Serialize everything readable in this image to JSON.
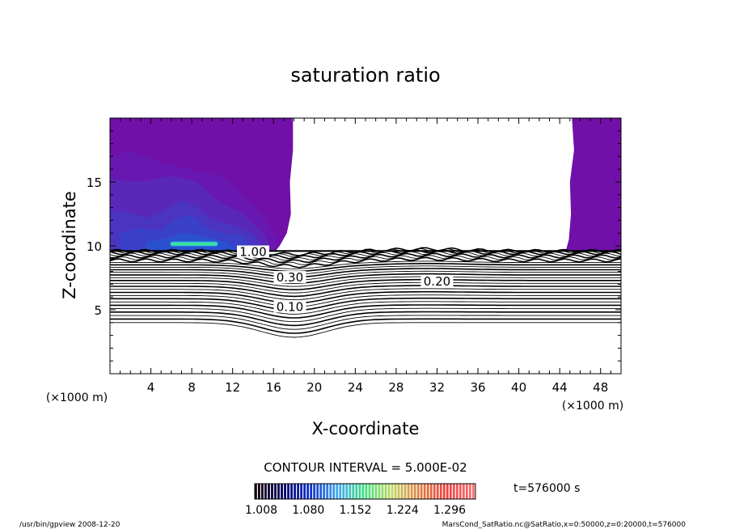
{
  "chart_data": {
    "type": "contour",
    "title": "saturation ratio",
    "xlabel": "X-coordinate",
    "ylabel": "Z-coordinate",
    "x_unit": "(×1000 m)",
    "y_unit": "(×1000 m)",
    "xlim": [
      0,
      50
    ],
    "ylim": [
      0,
      20
    ],
    "x_ticks": [
      4,
      8,
      12,
      16,
      20,
      24,
      28,
      32,
      36,
      40,
      44,
      48
    ],
    "y_ticks": [
      5,
      10,
      15
    ],
    "contour_interval_label": "CONTOUR INTERVAL = 5.000E-02",
    "time_label": "t=576000 s",
    "colorbar": {
      "ticks": [
        "1.008",
        "1.080",
        "1.152",
        "1.224",
        "1.296"
      ],
      "colors": [
        "#150008",
        "#000060",
        "#1030d0",
        "#40a8f0",
        "#40e080",
        "#c0d860",
        "#e08040",
        "#f04040",
        "#ff7070"
      ]
    },
    "contour_labels": [
      {
        "text": "1.00",
        "x": 14,
        "z": 9.4
      },
      {
        "text": "0.30",
        "x": 17.6,
        "z": 7.4
      },
      {
        "text": "0.20",
        "x": 32,
        "z": 7.1
      },
      {
        "text": "0.10",
        "x": 17.6,
        "z": 5.1
      }
    ],
    "fill_colors": [
      "#7010a8",
      "#6818b0",
      "#5a28b8",
      "#4a34c0",
      "#3a40c8",
      "#2a50d0"
    ],
    "line_color": "#000000"
  },
  "footer": {
    "left": "/usr/bin/gpview   2008-12-20",
    "right": "MarsCond_SatRatio.nc@SatRatio,x=0:50000,z=0:20000,t=576000"
  }
}
